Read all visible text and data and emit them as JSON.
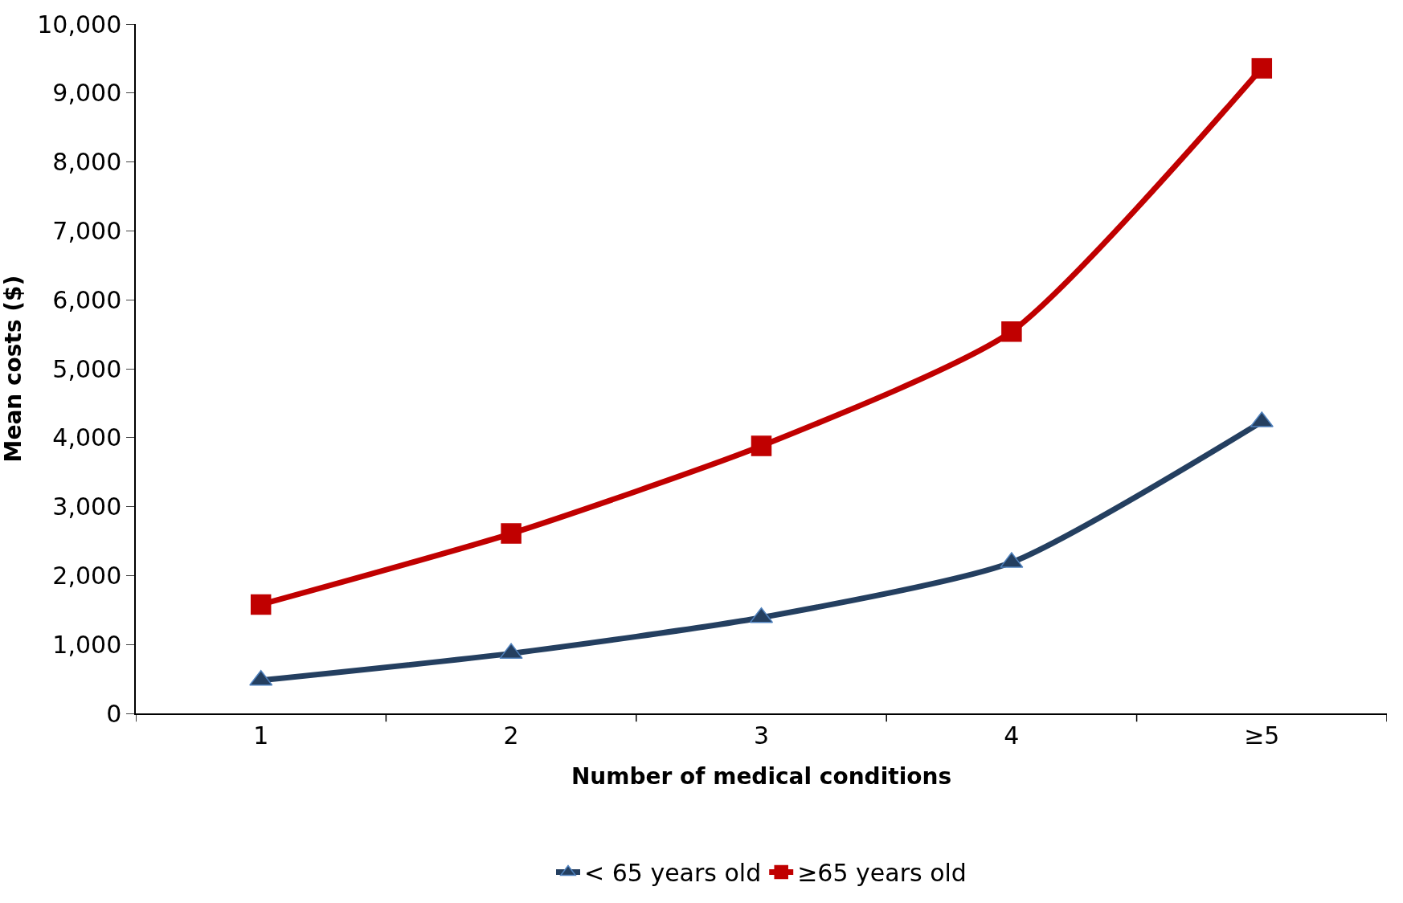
{
  "chart_data": {
    "type": "line",
    "xlabel": "Number of medical conditions",
    "ylabel": "Mean costs ($)",
    "categories": [
      "1",
      "2",
      "3",
      "4",
      "≥5"
    ],
    "series": [
      {
        "name": "< 65 years old",
        "color": "#243f60",
        "marker": "triangle",
        "values": [
          480,
          870,
          1390,
          2190,
          4230
        ]
      },
      {
        "name": "≥65 years old",
        "color": "#c00000",
        "marker": "square",
        "values": [
          1580,
          2610,
          3880,
          5540,
          9360
        ]
      }
    ],
    "ylim": [
      0,
      10000
    ],
    "yticks": [
      {
        "value": 0,
        "label": "0"
      },
      {
        "value": 1000,
        "label": "1,000"
      },
      {
        "value": 2000,
        "label": "2,000"
      },
      {
        "value": 3000,
        "label": "3,000"
      },
      {
        "value": 4000,
        "label": "4,000"
      },
      {
        "value": 5000,
        "label": "5,000"
      },
      {
        "value": 6000,
        "label": "6,000"
      },
      {
        "value": 7000,
        "label": "7,000"
      },
      {
        "value": 8000,
        "label": "8,000"
      },
      {
        "value": 9000,
        "label": "9,000"
      },
      {
        "value": 10000,
        "label": "10,000"
      }
    ],
    "legend": "bottom",
    "line_style": "solid"
  }
}
